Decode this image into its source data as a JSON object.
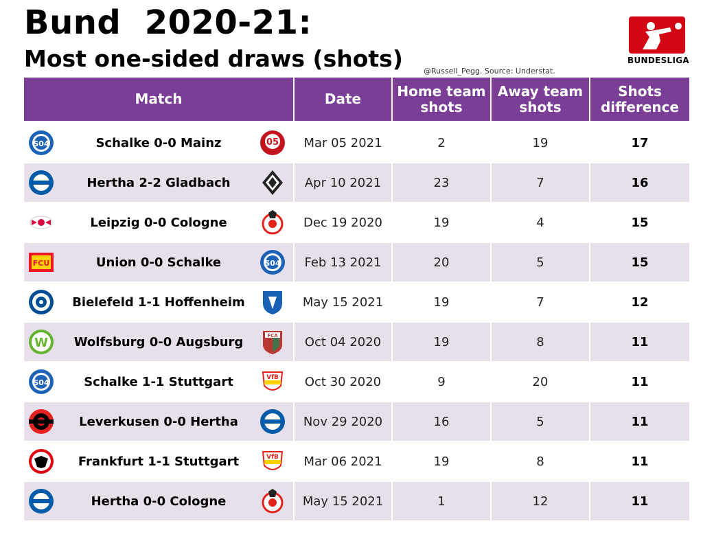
{
  "header": {
    "title": "Bund  2020-21:",
    "subtitle": "Most one-sided draws (shots)",
    "credit": "@Russell_Pegg. Source: Understat.",
    "logo_text": "BUNDESLIGA"
  },
  "table": {
    "columns": [
      "Match",
      "Date",
      "Home team shots",
      "Away team shots",
      "Shots difference"
    ],
    "rows": [
      {
        "match": "Schalke 0-0 Mainz",
        "date": "Mar 05 2021",
        "home": "2",
        "away": "19",
        "diff": "17",
        "home_crest": "schalke-crest-icon",
        "away_crest": "mainz-crest-icon"
      },
      {
        "match": "Hertha 2-2 Gladbach",
        "date": "Apr 10 2021",
        "home": "23",
        "away": "7",
        "diff": "16",
        "home_crest": "hertha-crest-icon",
        "away_crest": "gladbach-crest-icon"
      },
      {
        "match": "Leipzig 0-0 Cologne",
        "date": "Dec 19 2020",
        "home": "19",
        "away": "4",
        "diff": "15",
        "home_crest": "leipzig-crest-icon",
        "away_crest": "cologne-crest-icon"
      },
      {
        "match": "Union 0-0 Schalke",
        "date": "Feb 13 2021",
        "home": "20",
        "away": "5",
        "diff": "15",
        "home_crest": "union-crest-icon",
        "away_crest": "schalke-crest-icon"
      },
      {
        "match": "Bielefeld 1-1 Hoffenheim",
        "date": "May 15 2021",
        "home": "19",
        "away": "7",
        "diff": "12",
        "home_crest": "bielefeld-crest-icon",
        "away_crest": "hoffenheim-crest-icon"
      },
      {
        "match": "Wolfsburg 0-0 Augsburg",
        "date": "Oct 04 2020",
        "home": "19",
        "away": "8",
        "diff": "11",
        "home_crest": "wolfsburg-crest-icon",
        "away_crest": "augsburg-crest-icon"
      },
      {
        "match": "Schalke 1-1 Stuttgart",
        "date": "Oct 30 2020",
        "home": "9",
        "away": "20",
        "diff": "11",
        "home_crest": "schalke-crest-icon",
        "away_crest": "stuttgart-crest-icon"
      },
      {
        "match": "Leverkusen 0-0 Hertha",
        "date": "Nov 29 2020",
        "home": "16",
        "away": "5",
        "diff": "11",
        "home_crest": "leverkusen-crest-icon",
        "away_crest": "hertha-crest-icon"
      },
      {
        "match": "Frankfurt 1-1 Stuttgart",
        "date": "Mar 06 2021",
        "home": "19",
        "away": "8",
        "diff": "11",
        "home_crest": "frankfurt-crest-icon",
        "away_crest": "stuttgart-crest-icon"
      },
      {
        "match": "Hertha 0-0 Cologne",
        "date": "May 15 2021",
        "home": "1",
        "away": "12",
        "diff": "11",
        "home_crest": "hertha-crest-icon",
        "away_crest": "cologne-crest-icon"
      }
    ]
  },
  "colors": {
    "header_bg": "#7a3e96",
    "alt_row_bg": "#e7e0ea",
    "brand_red": "#d20515"
  }
}
